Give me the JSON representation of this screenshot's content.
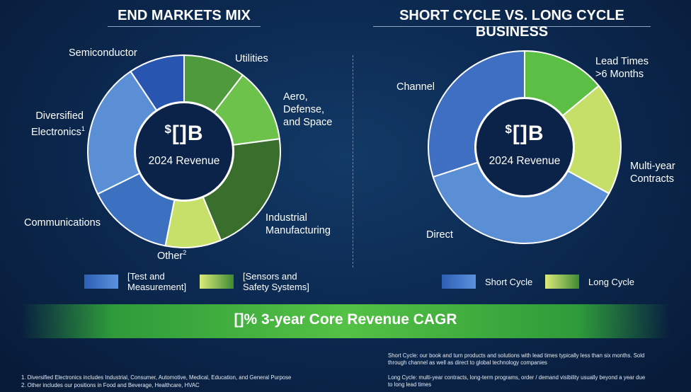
{
  "left": {
    "title": "END MARKETS MIX",
    "center_value_prefix": "$",
    "center_value": "[]B",
    "center_caption": "2024 Revenue",
    "labels": {
      "semiconductor": "Semiconductor",
      "utilities": "Utilities",
      "aero_line1": "Aero,",
      "aero_line2": "Defense,",
      "aero_line3": "and Space",
      "diversified_line1": "Diversified",
      "diversified_line2": "Electronics",
      "diversified_sup": "1",
      "industrial_line1": "Industrial",
      "industrial_line2": "Manufacturing",
      "communications": "Communications",
      "other": "Other",
      "other_sup": "2"
    },
    "legend": [
      {
        "line1": "[Test and",
        "line2": "Measurement]",
        "color": "#3f76c6"
      },
      {
        "line1": "[Sensors and",
        "line2": "Safety Systems]",
        "color": "#7fb94a"
      }
    ]
  },
  "right": {
    "title": "SHORT CYCLE VS. LONG CYCLE BUSINESS",
    "center_value_prefix": "$",
    "center_value": "[]B",
    "center_caption": "2024 Revenue",
    "labels": {
      "channel": "Channel",
      "direct": "Direct",
      "lead_line1": "Lead Times",
      "lead_line2": ">6 Months",
      "multi_line1": "Multi-year",
      "multi_line2": "Contracts"
    },
    "legend": [
      {
        "label": "Short Cycle",
        "color": "#3f76c6"
      },
      {
        "label": "Long Cycle",
        "color": "#7fb94a"
      }
    ]
  },
  "banner": "[]% 3-year Core Revenue CAGR",
  "footnotes": {
    "note1": "1. Diversified Electronics includes Industrial, Consumer, Automotive, Medical, Education, and General Purpose",
    "note2": "2. Other includes our positions in Food and Beverage, Healthcare, HVAC",
    "short_cycle_line1": "Short Cycle: our book and turn products and solutions with lead times typically less than six months. Sold",
    "short_cycle_line2": "through channel as well as direct to global technology companies",
    "long_cycle_line1": "Long Cycle: multi-year contracts, long-term programs, order / demand visibility usually beyond a year due",
    "long_cycle_line2": "to long lead times"
  },
  "chart_data": [
    {
      "type": "pie",
      "title": "END MARKETS MIX",
      "donut": true,
      "categories": [
        "Utilities",
        "Aero, Defense, and Space",
        "Industrial Manufacturing",
        "Other",
        "Communications",
        "Diversified Electronics",
        "Semiconductor"
      ],
      "values": [
        10,
        12,
        20,
        9,
        14,
        22,
        9
      ],
      "unit": "percent (estimated)",
      "colors": [
        "#4e9a3c",
        "#6cc24a",
        "#3a6e2c",
        "#c7e06a",
        "#3c70c0",
        "#5a8fd6",
        "#2855b0"
      ],
      "legend": [
        "[Test and Measurement]",
        "[Sensors and Safety Systems]"
      ]
    },
    {
      "type": "pie",
      "title": "SHORT CYCLE VS. LONG CYCLE BUSINESS",
      "donut": true,
      "categories": [
        "Lead Times >6 Months",
        "Multi-year Contracts",
        "Direct",
        "Channel"
      ],
      "values": [
        14,
        19,
        37,
        30
      ],
      "unit": "percent (estimated)",
      "colors": [
        "#5cbf45",
        "#c5df68",
        "#5a8fd6",
        "#3f6fc2"
      ],
      "legend": [
        "Short Cycle",
        "Long Cycle"
      ]
    }
  ]
}
